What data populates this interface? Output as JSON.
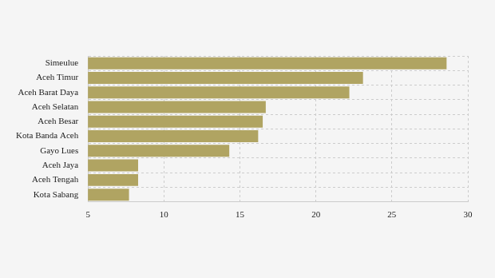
{
  "chart_data": {
    "type": "bar",
    "orientation": "horizontal",
    "categories": [
      "Simeulue",
      "Aceh Timur",
      "Aceh Barat Daya",
      "Aceh Selatan",
      "Aceh Besar",
      "Kota Banda Aceh",
      "Gayo Lues",
      "Aceh Jaya",
      "Aceh Tengah",
      "Kota Sabang"
    ],
    "values": [
      28.6,
      23.1,
      22.2,
      16.7,
      16.5,
      16.2,
      14.3,
      8.3,
      8.3,
      7.7
    ],
    "color": "#b0a462",
    "xlim": [
      5,
      30
    ],
    "xticks": [
      5,
      10,
      15,
      20,
      25,
      30
    ],
    "grid": true
  }
}
